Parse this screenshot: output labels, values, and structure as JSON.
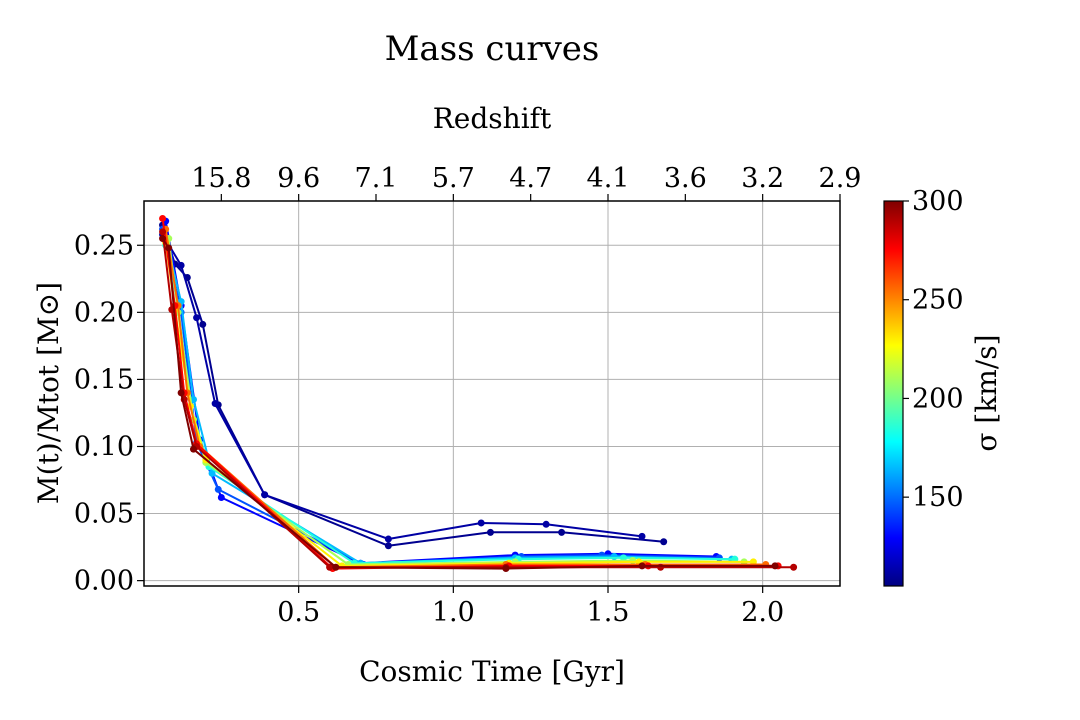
{
  "chart_data": {
    "type": "line",
    "title": "Mass curves",
    "xlabel": "Cosmic Time [Gyr]",
    "ylabel": "M(t)/Mtot [M⊙]",
    "top_axis_label": "Redshift",
    "xlim": [
      -0.0,
      2.25
    ],
    "ylim": [
      -0.004,
      0.283
    ],
    "x_ticks": [
      0.5,
      1.0,
      1.5,
      2.0
    ],
    "x_tick_labels": [
      "0.5",
      "1.0",
      "1.5",
      "2.0"
    ],
    "y_ticks": [
      0.0,
      0.05,
      0.1,
      0.15,
      0.2,
      0.25
    ],
    "y_tick_labels": [
      "0.00",
      "0.05",
      "0.10",
      "0.15",
      "0.20",
      "0.25"
    ],
    "top_ticks": [
      0.25,
      0.5,
      0.75,
      1.0,
      1.25,
      1.5,
      1.75,
      2.0,
      2.25
    ],
    "top_tick_labels": [
      "15.8",
      "9.6",
      "7.1",
      "5.7",
      "4.7",
      "4.1",
      "3.6",
      "3.2",
      "2.9"
    ],
    "grid": true,
    "colorbar": {
      "label": "σ [km/s]",
      "range": [
        105,
        300
      ],
      "ticks": [
        150,
        200,
        250,
        300
      ],
      "tick_labels": [
        "150",
        "200",
        "250",
        "300"
      ],
      "colormap": "jet",
      "colors": [
        "#000080",
        "#0000ff",
        "#0080ff",
        "#00ffff",
        "#80ff80",
        "#ffff00",
        "#ff8000",
        "#ff0000",
        "#800000"
      ]
    },
    "series": [
      {
        "sigma": 108,
        "x": [
          0.06,
          0.1,
          0.14,
          0.19,
          0.24,
          0.39,
          0.79,
          1.12,
          1.35,
          1.68
        ],
        "y": [
          0.265,
          0.236,
          0.226,
          0.191,
          0.131,
          0.064,
          0.026,
          0.036,
          0.036,
          0.029
        ]
      },
      {
        "sigma": 112,
        "x": [
          0.06,
          0.12,
          0.17,
          0.23,
          0.39,
          0.79,
          1.09,
          1.3,
          1.61
        ],
        "y": [
          0.258,
          0.235,
          0.196,
          0.132,
          0.064,
          0.031,
          0.043,
          0.042,
          0.033
        ]
      },
      {
        "sigma": 130,
        "x": [
          0.07,
          0.12,
          0.18,
          0.25,
          0.7,
          1.2,
          1.5,
          1.85
        ],
        "y": [
          0.268,
          0.205,
          0.105,
          0.062,
          0.013,
          0.019,
          0.02,
          0.018
        ]
      },
      {
        "sigma": 145,
        "x": [
          0.06,
          0.12,
          0.17,
          0.24,
          0.71,
          1.22,
          1.48,
          1.86
        ],
        "y": [
          0.262,
          0.2,
          0.103,
          0.068,
          0.012,
          0.018,
          0.019,
          0.017
        ]
      },
      {
        "sigma": 165,
        "x": [
          0.07,
          0.12,
          0.16,
          0.22,
          0.7,
          1.2,
          1.52,
          1.9
        ],
        "y": [
          0.255,
          0.208,
          0.135,
          0.08,
          0.013,
          0.017,
          0.018,
          0.016
        ]
      },
      {
        "sigma": 185,
        "x": [
          0.07,
          0.11,
          0.15,
          0.21,
          0.68,
          1.21,
          1.55,
          1.91
        ],
        "y": [
          0.25,
          0.205,
          0.13,
          0.085,
          0.013,
          0.016,
          0.017,
          0.016
        ]
      },
      {
        "sigma": 210,
        "x": [
          0.08,
          0.11,
          0.16,
          0.2,
          0.66,
          1.2,
          1.58,
          1.94
        ],
        "y": [
          0.255,
          0.2,
          0.12,
          0.088,
          0.012,
          0.014,
          0.015,
          0.014
        ]
      },
      {
        "sigma": 230,
        "x": [
          0.07,
          0.1,
          0.15,
          0.2,
          0.64,
          1.18,
          1.6,
          1.97
        ],
        "y": [
          0.252,
          0.202,
          0.13,
          0.09,
          0.011,
          0.013,
          0.014,
          0.014
        ]
      },
      {
        "sigma": 255,
        "x": [
          0.07,
          0.11,
          0.14,
          0.18,
          0.62,
          1.17,
          1.62,
          2.01
        ],
        "y": [
          0.262,
          0.205,
          0.14,
          0.1,
          0.01,
          0.012,
          0.012,
          0.012
        ]
      },
      {
        "sigma": 275,
        "x": [
          0.06,
          0.1,
          0.13,
          0.17,
          0.61,
          1.18,
          1.63,
          2.05
        ],
        "y": [
          0.27,
          0.205,
          0.14,
          0.102,
          0.009,
          0.011,
          0.011,
          0.011
        ]
      },
      {
        "sigma": 290,
        "x": [
          0.06,
          0.09,
          0.13,
          0.17,
          0.6,
          1.17,
          1.67,
          2.1
        ],
        "y": [
          0.26,
          0.202,
          0.135,
          0.1,
          0.01,
          0.01,
          0.01,
          0.01
        ]
      },
      {
        "sigma": 300,
        "x": [
          0.06,
          0.08,
          0.12,
          0.16,
          0.62,
          1.17,
          1.61,
          2.04
        ],
        "y": [
          0.255,
          0.248,
          0.14,
          0.098,
          0.01,
          0.009,
          0.011,
          0.011
        ]
      }
    ]
  }
}
